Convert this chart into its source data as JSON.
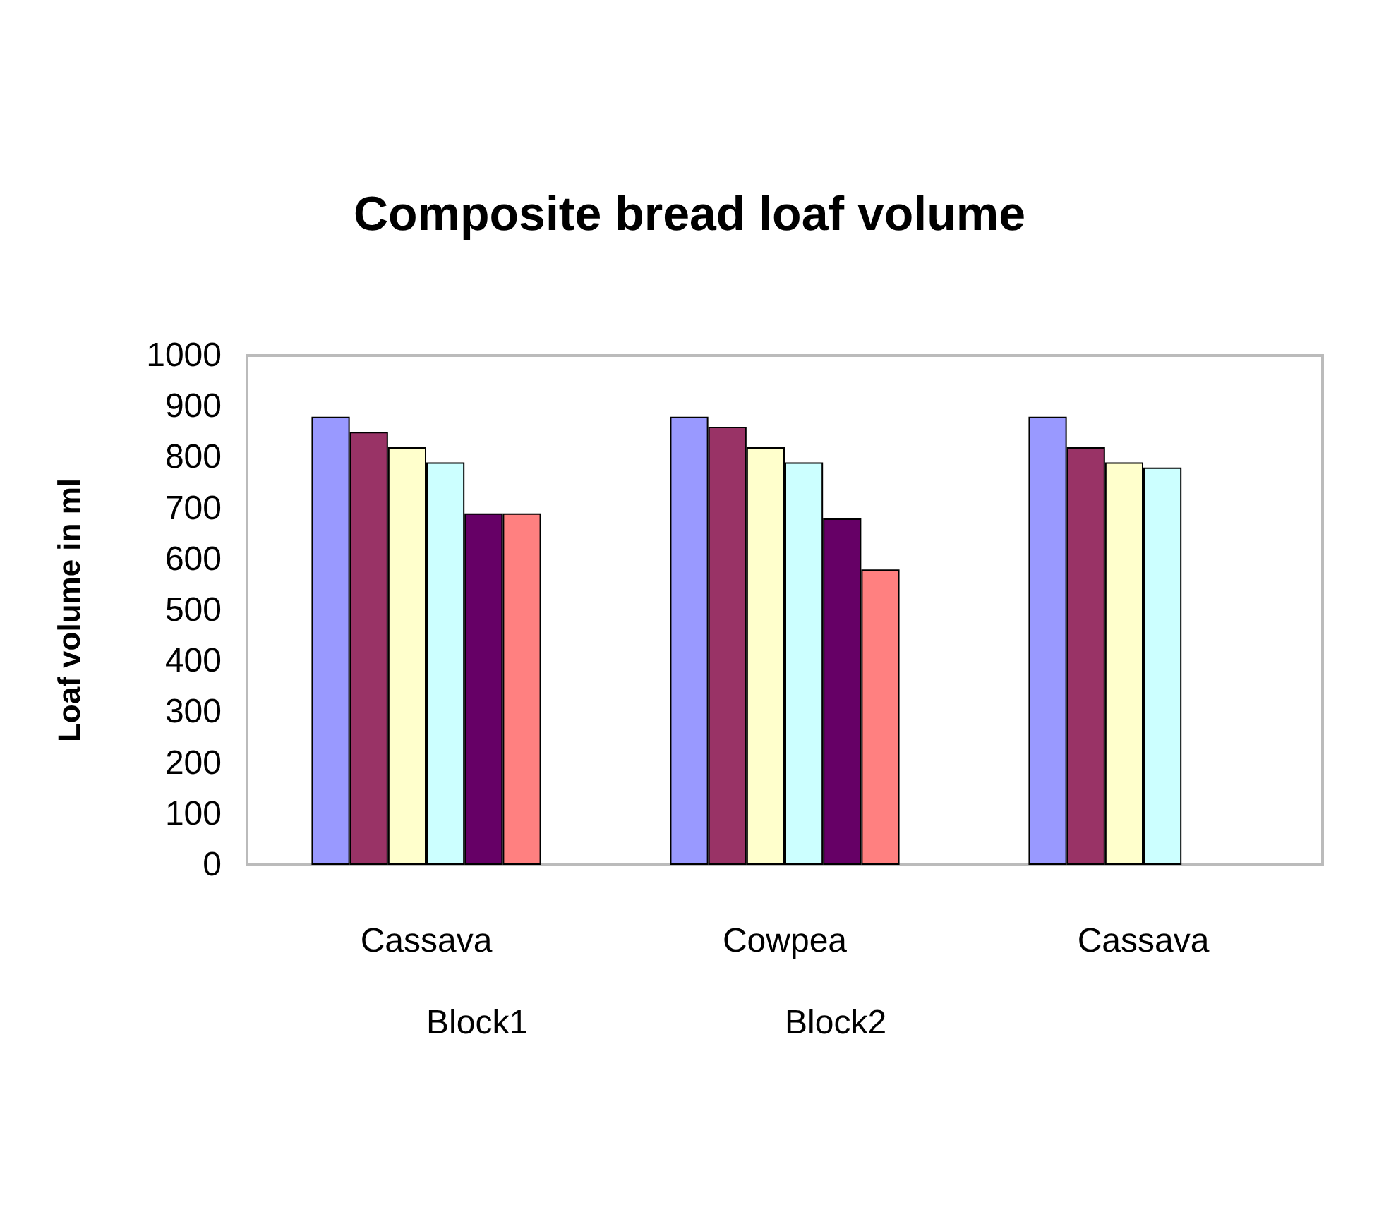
{
  "chart_data": {
    "type": "bar",
    "title": "Composite bread loaf volume",
    "ylabel": "Loaf volume in ml",
    "categories": [
      "Cassava",
      "Cowpea",
      "Cassava"
    ],
    "annotations": [
      "Block1",
      "Block2"
    ],
    "series": [
      {
        "color": "#9999ff",
        "values": [
          880,
          880,
          880
        ]
      },
      {
        "color": "#993366",
        "values": [
          850,
          860,
          820
        ]
      },
      {
        "color": "#ffffcc",
        "values": [
          820,
          820,
          790
        ]
      },
      {
        "color": "#ccffff",
        "values": [
          790,
          790,
          780
        ]
      },
      {
        "color": "#660066",
        "values": [
          690,
          680,
          null
        ]
      },
      {
        "color": "#ff8080",
        "values": [
          690,
          580,
          null
        ]
      }
    ],
    "ylim": [
      0,
      1000
    ],
    "yticks": [
      0,
      100,
      200,
      300,
      400,
      500,
      600,
      700,
      800,
      900,
      1000
    ],
    "grid": false
  }
}
